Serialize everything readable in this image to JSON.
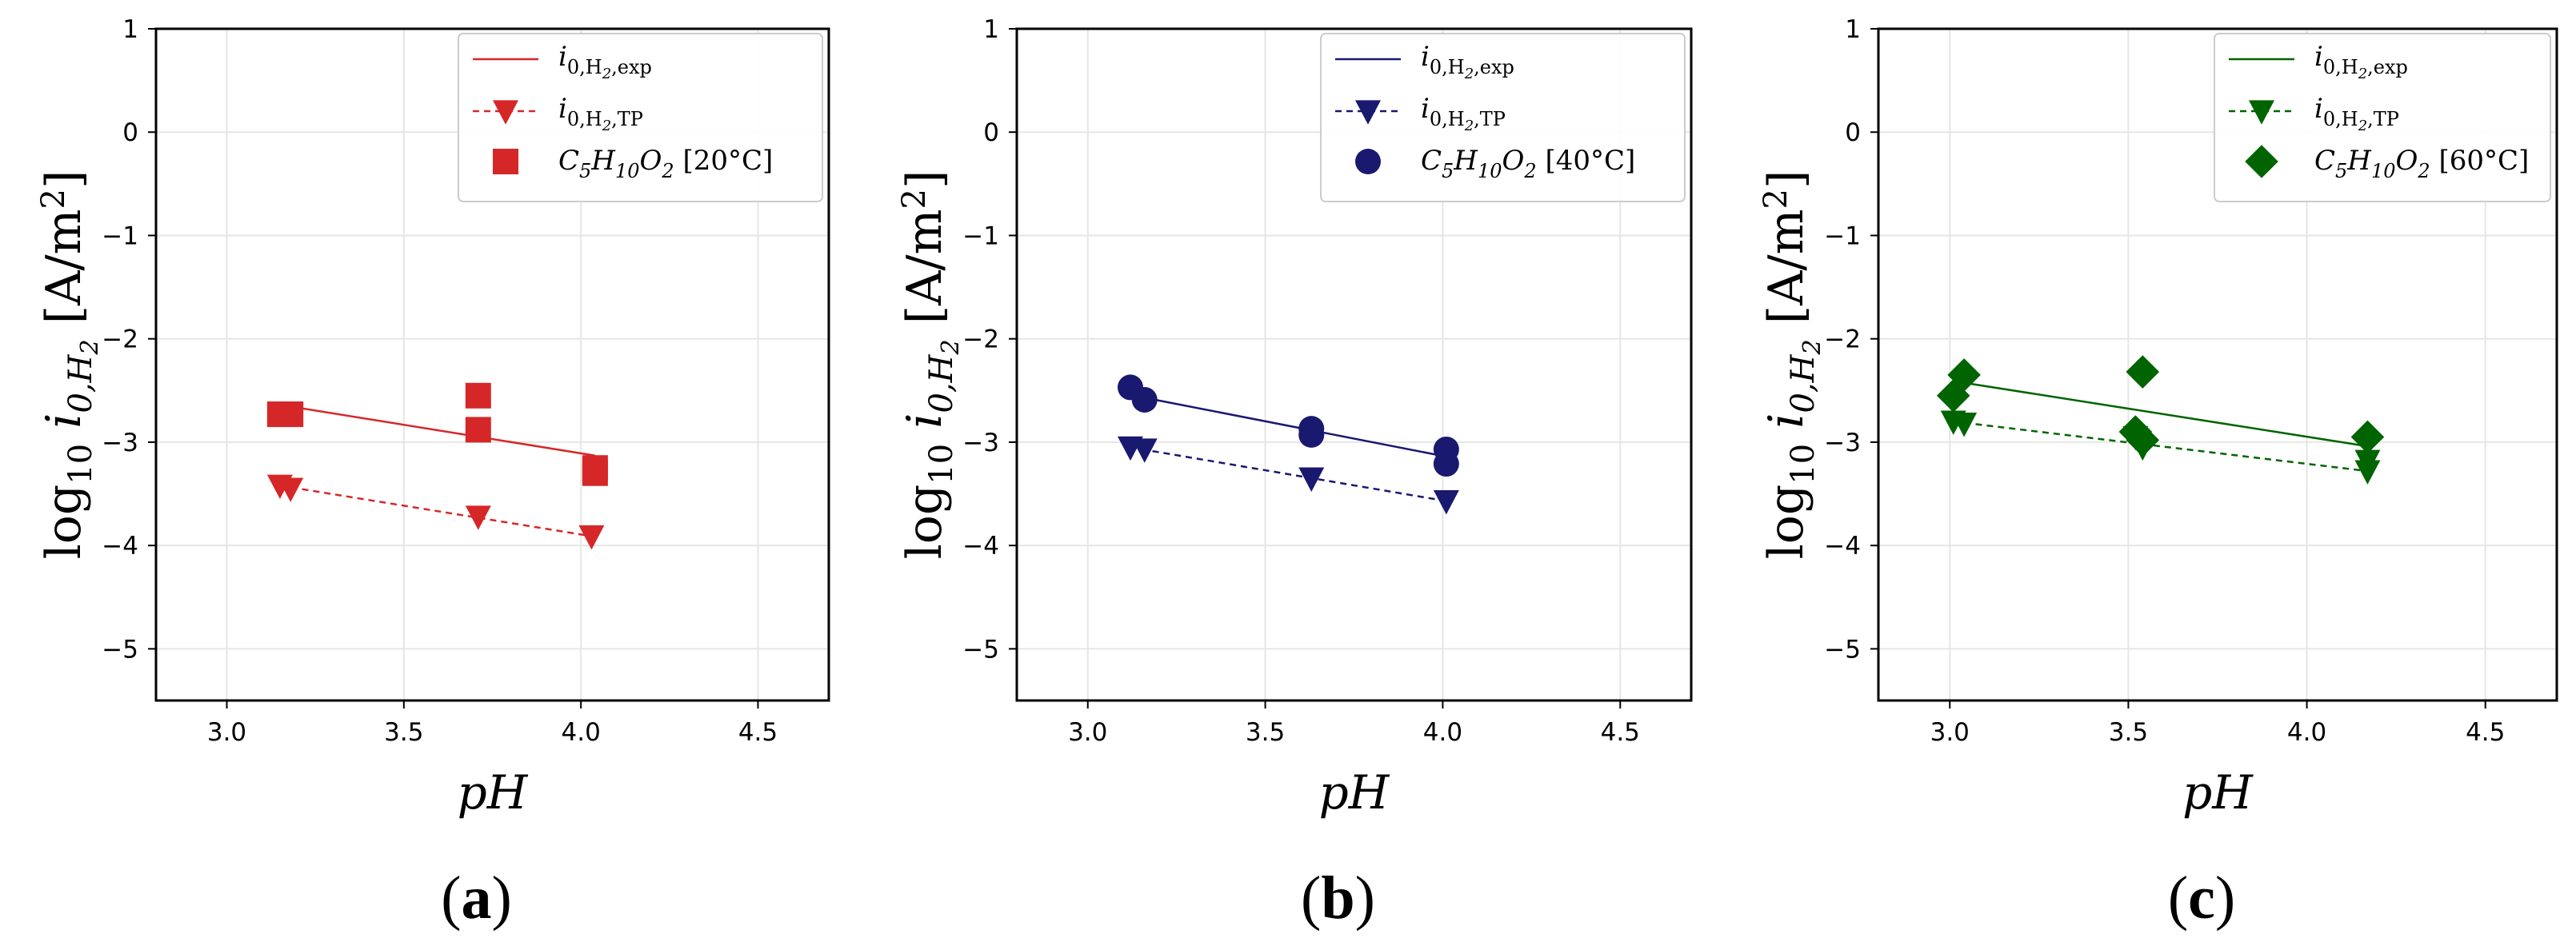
{
  "chart_data": [
    {
      "type": "scatter",
      "panel_label": "(a)",
      "xlabel": "pH",
      "ylabel": "log10 i0,H2 [A/m2]",
      "xlim": [
        2.8,
        4.7
      ],
      "ylim": [
        -5.5,
        1.0
      ],
      "xticks": [
        "3.0",
        "3.5",
        "4.0",
        "4.5"
      ],
      "yticks": [
        "1",
        "0",
        "−1",
        "−2",
        "−3",
        "−4",
        "−5"
      ],
      "color": "#d62728",
      "marker": "square",
      "legend_position": "top-right",
      "legend": [
        "i0,H2,exp",
        "i0,H2,TP",
        "C5H10O2 [20°C]"
      ],
      "series": [
        {
          "name": "i0,H2,exp",
          "style": "solid-line",
          "x": [
            3.17,
            4.04
          ],
          "y": [
            -2.65,
            -3.13
          ]
        },
        {
          "name": "i0,H2,TP",
          "style": "dashed-line-triangle",
          "x": [
            3.15,
            3.18,
            3.71,
            4.03
          ],
          "y": [
            -3.42,
            -3.45,
            -3.72,
            -3.91
          ]
        },
        {
          "name": "C5H10O2 [20°C]",
          "style": "marker",
          "x": [
            3.15,
            3.18,
            3.71,
            3.71,
            4.04,
            4.04
          ],
          "y": [
            -2.73,
            -2.73,
            -2.55,
            -2.88,
            -3.25,
            -3.3
          ]
        }
      ]
    },
    {
      "type": "scatter",
      "panel_label": "(b)",
      "xlabel": "pH",
      "ylabel": "log10 i0,H2 [A/m2]",
      "xlim": [
        2.8,
        4.7
      ],
      "ylim": [
        -5.5,
        1.0
      ],
      "xticks": [
        "3.0",
        "3.5",
        "4.0",
        "4.5"
      ],
      "yticks": [
        "1",
        "0",
        "−1",
        "−2",
        "−3",
        "−4",
        "−5"
      ],
      "color": "#191970",
      "marker": "circle",
      "legend_position": "top-right",
      "legend": [
        "i0,H2,exp",
        "i0,H2,TP",
        "C5H10O2 [40°C]"
      ],
      "series": [
        {
          "name": "i0,H2,exp",
          "style": "solid-line",
          "x": [
            3.13,
            4.01
          ],
          "y": [
            -2.55,
            -3.14
          ]
        },
        {
          "name": "i0,H2,TP",
          "style": "dashed-line-triangle",
          "x": [
            3.12,
            3.16,
            3.63,
            4.01
          ],
          "y": [
            -3.05,
            -3.07,
            -3.35,
            -3.57
          ]
        },
        {
          "name": "C5H10O2 [40°C]",
          "style": "marker",
          "x": [
            3.12,
            3.16,
            3.63,
            3.63,
            4.01,
            4.01
          ],
          "y": [
            -2.47,
            -2.59,
            -2.87,
            -2.93,
            -3.07,
            -3.21
          ]
        }
      ]
    },
    {
      "type": "scatter",
      "panel_label": "(c)",
      "xlabel": "pH",
      "ylabel": "log10 i0,H2 [A/m2]",
      "xlim": [
        2.8,
        4.7
      ],
      "ylim": [
        -5.5,
        1.0
      ],
      "xticks": [
        "3.0",
        "3.5",
        "4.0",
        "4.5"
      ],
      "yticks": [
        "1",
        "0",
        "−1",
        "−2",
        "−3",
        "−4",
        "−5"
      ],
      "color": "#006400",
      "marker": "diamond",
      "legend_position": "top-right",
      "legend": [
        "i0,H2,exp",
        "i0,H2,TP",
        "C5H10O2 [60°C]"
      ],
      "series": [
        {
          "name": "i0,H2,exp",
          "style": "solid-line",
          "x": [
            3.03,
            4.17
          ],
          "y": [
            -2.42,
            -3.04
          ]
        },
        {
          "name": "i0,H2,TP",
          "style": "dashed-line-triangle",
          "x": [
            3.01,
            3.04,
            3.52,
            3.54,
            4.17,
            4.17
          ],
          "y": [
            -2.8,
            -2.82,
            -2.95,
            -3.05,
            -3.18,
            -3.28
          ]
        },
        {
          "name": "C5H10O2 [60°C]",
          "style": "marker",
          "x": [
            3.01,
            3.04,
            3.52,
            3.54,
            3.54,
            4.17
          ],
          "y": [
            -2.55,
            -2.35,
            -2.9,
            -2.32,
            -2.98,
            -2.95
          ]
        }
      ]
    }
  ]
}
